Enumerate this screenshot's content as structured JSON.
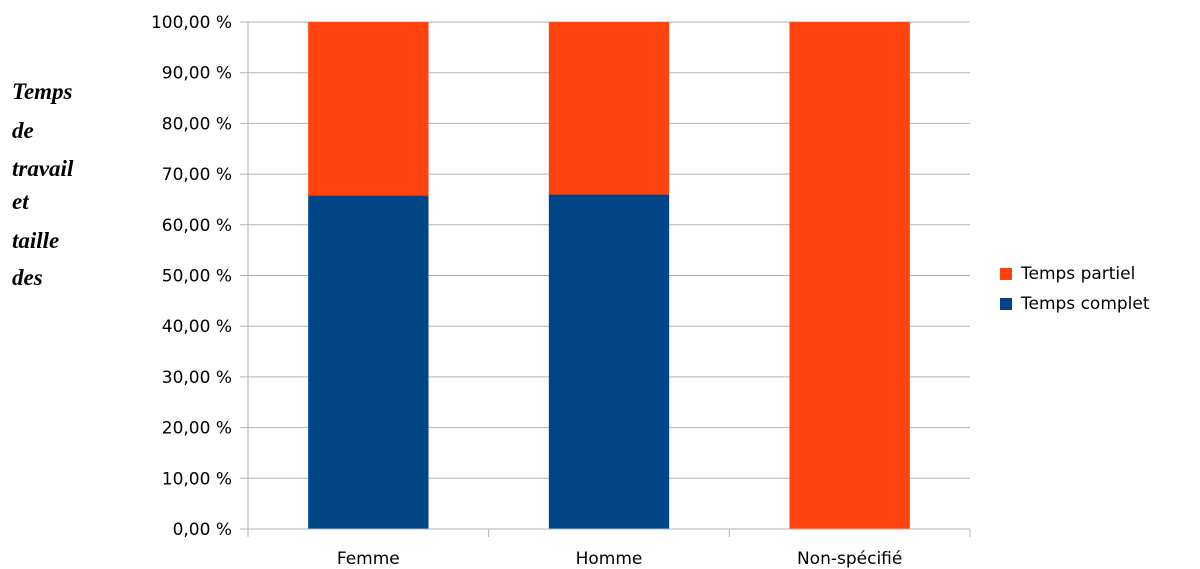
{
  "chart_data": {
    "type": "bar",
    "stacked": true,
    "title": "",
    "ylabel_lines": [
      "Temps",
      "de",
      "travail",
      "et",
      "taille",
      "des"
    ],
    "xlabel": "",
    "categories": [
      "Femme",
      "Homme",
      "Non-spécifié"
    ],
    "series": [
      {
        "name": "Temps complet",
        "color": "#004586",
        "values": [
          65.8,
          66.0,
          0
        ]
      },
      {
        "name": "Temps partiel",
        "color": "#ff420e",
        "values": [
          34.2,
          34.0,
          100
        ]
      }
    ],
    "ylim": [
      0,
      100
    ],
    "yticks": [
      "0,00 %",
      "10,00 %",
      "20,00 %",
      "30,00 %",
      "40,00 %",
      "50,00 %",
      "60,00 %",
      "70,00 %",
      "80,00 %",
      "90,00 %",
      "100,00 %"
    ],
    "grid": true,
    "legend_position": "right",
    "legend_order": [
      "Temps partiel",
      "Temps complet"
    ]
  }
}
